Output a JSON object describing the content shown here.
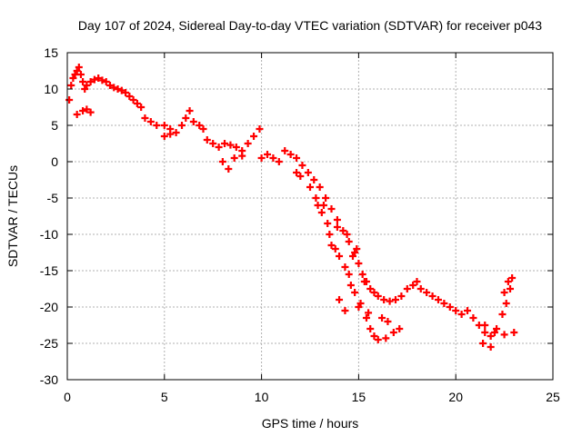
{
  "chart_data": {
    "type": "scatter",
    "title": "Day 107 of 2024, Sidereal Day-to-day VTEC variation (SDTVAR) for receiver p043",
    "xlabel": "GPS time / hours",
    "ylabel": "SDTVAR / TECUs",
    "xlim": [
      0,
      25
    ],
    "ylim": [
      -30,
      15
    ],
    "xticks": [
      0,
      5,
      10,
      15,
      20,
      25
    ],
    "yticks": [
      -30,
      -25,
      -20,
      -15,
      -10,
      -5,
      0,
      5,
      10,
      15
    ],
    "grid": true,
    "legend": "none",
    "marker": "plus",
    "series": [
      {
        "name": "SDTVAR",
        "color": "#ff0000",
        "points": [
          [
            0.1,
            8.5
          ],
          [
            0.2,
            10.5
          ],
          [
            0.3,
            11.5
          ],
          [
            0.4,
            12.0
          ],
          [
            0.5,
            12.5
          ],
          [
            0.6,
            13.0
          ],
          [
            0.7,
            12.0
          ],
          [
            0.8,
            11.0
          ],
          [
            0.9,
            10.0
          ],
          [
            1.0,
            10.5
          ],
          [
            1.2,
            11.0
          ],
          [
            1.4,
            11.3
          ],
          [
            1.6,
            11.5
          ],
          [
            1.8,
            11.2
          ],
          [
            2.0,
            11.0
          ],
          [
            2.2,
            10.5
          ],
          [
            2.4,
            10.2
          ],
          [
            2.6,
            10.0
          ],
          [
            2.8,
            9.8
          ],
          [
            3.0,
            9.5
          ],
          [
            3.2,
            9.0
          ],
          [
            3.4,
            8.5
          ],
          [
            3.6,
            8.0
          ],
          [
            3.8,
            7.5
          ],
          [
            0.5,
            6.5
          ],
          [
            0.8,
            7.0
          ],
          [
            1.0,
            7.2
          ],
          [
            1.2,
            6.8
          ],
          [
            4.0,
            6.0
          ],
          [
            4.3,
            5.5
          ],
          [
            4.6,
            5.0
          ],
          [
            5.0,
            5.0
          ],
          [
            5.3,
            4.5
          ],
          [
            5.6,
            4.0
          ],
          [
            5.9,
            5.0
          ],
          [
            6.1,
            6.0
          ],
          [
            6.3,
            7.0
          ],
          [
            6.5,
            5.5
          ],
          [
            6.8,
            5.0
          ],
          [
            7.0,
            4.5
          ],
          [
            5.0,
            3.5
          ],
          [
            5.3,
            3.8
          ],
          [
            7.2,
            3.0
          ],
          [
            7.5,
            2.5
          ],
          [
            7.8,
            2.0
          ],
          [
            8.1,
            2.5
          ],
          [
            8.4,
            2.3
          ],
          [
            8.7,
            2.0
          ],
          [
            9.0,
            1.5
          ],
          [
            9.3,
            2.5
          ],
          [
            9.6,
            3.5
          ],
          [
            9.9,
            4.5
          ],
          [
            8.0,
            0.0
          ],
          [
            8.3,
            -1.0
          ],
          [
            8.6,
            0.5
          ],
          [
            9.0,
            0.8
          ],
          [
            10.0,
            0.5
          ],
          [
            10.3,
            1.0
          ],
          [
            10.6,
            0.5
          ],
          [
            10.9,
            0.0
          ],
          [
            11.2,
            1.5
          ],
          [
            11.5,
            1.0
          ],
          [
            11.8,
            0.5
          ],
          [
            12.1,
            -0.5
          ],
          [
            12.4,
            -1.5
          ],
          [
            12.7,
            -2.5
          ],
          [
            13.0,
            -3.5
          ],
          [
            13.3,
            -5.0
          ],
          [
            13.6,
            -6.5
          ],
          [
            13.9,
            -8.0
          ],
          [
            14.2,
            -9.5
          ],
          [
            14.5,
            -11.0
          ],
          [
            14.8,
            -12.5
          ],
          [
            15.0,
            -14.0
          ],
          [
            15.2,
            -15.5
          ],
          [
            15.4,
            -16.5
          ],
          [
            15.6,
            -17.5
          ],
          [
            15.8,
            -18.0
          ],
          [
            16.0,
            -18.5
          ],
          [
            16.3,
            -19.0
          ],
          [
            16.6,
            -19.2
          ],
          [
            16.9,
            -19.0
          ],
          [
            17.2,
            -18.5
          ],
          [
            17.5,
            -17.5
          ],
          [
            17.8,
            -17.0
          ],
          [
            18.0,
            -16.5
          ],
          [
            18.2,
            -17.5
          ],
          [
            18.5,
            -18.0
          ],
          [
            18.8,
            -18.5
          ],
          [
            19.1,
            -19.0
          ],
          [
            19.4,
            -19.5
          ],
          [
            19.7,
            -20.0
          ],
          [
            20.0,
            -20.5
          ],
          [
            20.3,
            -21.0
          ],
          [
            20.6,
            -20.5
          ],
          [
            20.9,
            -21.5
          ],
          [
            21.2,
            -22.5
          ],
          [
            21.5,
            -23.5
          ],
          [
            21.8,
            -24.0
          ],
          [
            22.1,
            -23.0
          ],
          [
            22.4,
            -21.0
          ],
          [
            22.6,
            -19.5
          ],
          [
            22.8,
            -17.5
          ],
          [
            22.9,
            -16.0
          ],
          [
            22.7,
            -16.5
          ],
          [
            22.5,
            -18.0
          ],
          [
            21.5,
            -22.5
          ],
          [
            22.0,
            -23.5
          ],
          [
            22.5,
            -23.8
          ],
          [
            23.0,
            -23.5
          ],
          [
            21.4,
            -25.0
          ],
          [
            21.8,
            -25.5
          ],
          [
            14.6,
            -17.0
          ],
          [
            14.8,
            -18.0
          ],
          [
            15.1,
            -19.5
          ],
          [
            15.4,
            -21.5
          ],
          [
            15.6,
            -23.0
          ],
          [
            15.8,
            -24.0
          ],
          [
            16.0,
            -24.5
          ],
          [
            16.4,
            -24.3
          ],
          [
            16.8,
            -23.5
          ],
          [
            17.1,
            -23.0
          ],
          [
            14.0,
            -19.0
          ],
          [
            14.3,
            -20.5
          ],
          [
            15.0,
            -20.0
          ],
          [
            15.5,
            -20.8
          ],
          [
            16.2,
            -21.5
          ],
          [
            16.5,
            -22.0
          ],
          [
            13.5,
            -10.0
          ],
          [
            13.8,
            -12.0
          ],
          [
            14.0,
            -13.0
          ],
          [
            12.5,
            -3.5
          ],
          [
            12.8,
            -5.0
          ],
          [
            13.1,
            -7.0
          ],
          [
            12.0,
            -2.0
          ],
          [
            11.8,
            -1.5
          ],
          [
            14.3,
            -14.5
          ],
          [
            13.6,
            -11.5
          ],
          [
            13.9,
            -9.0
          ],
          [
            14.4,
            -10.0
          ],
          [
            14.7,
            -13.0
          ],
          [
            14.9,
            -12.0
          ],
          [
            13.2,
            -6.0
          ],
          [
            13.4,
            -8.5
          ],
          [
            12.9,
            -6.0
          ],
          [
            15.3,
            -16.5
          ],
          [
            14.5,
            -15.5
          ]
        ]
      }
    ]
  }
}
